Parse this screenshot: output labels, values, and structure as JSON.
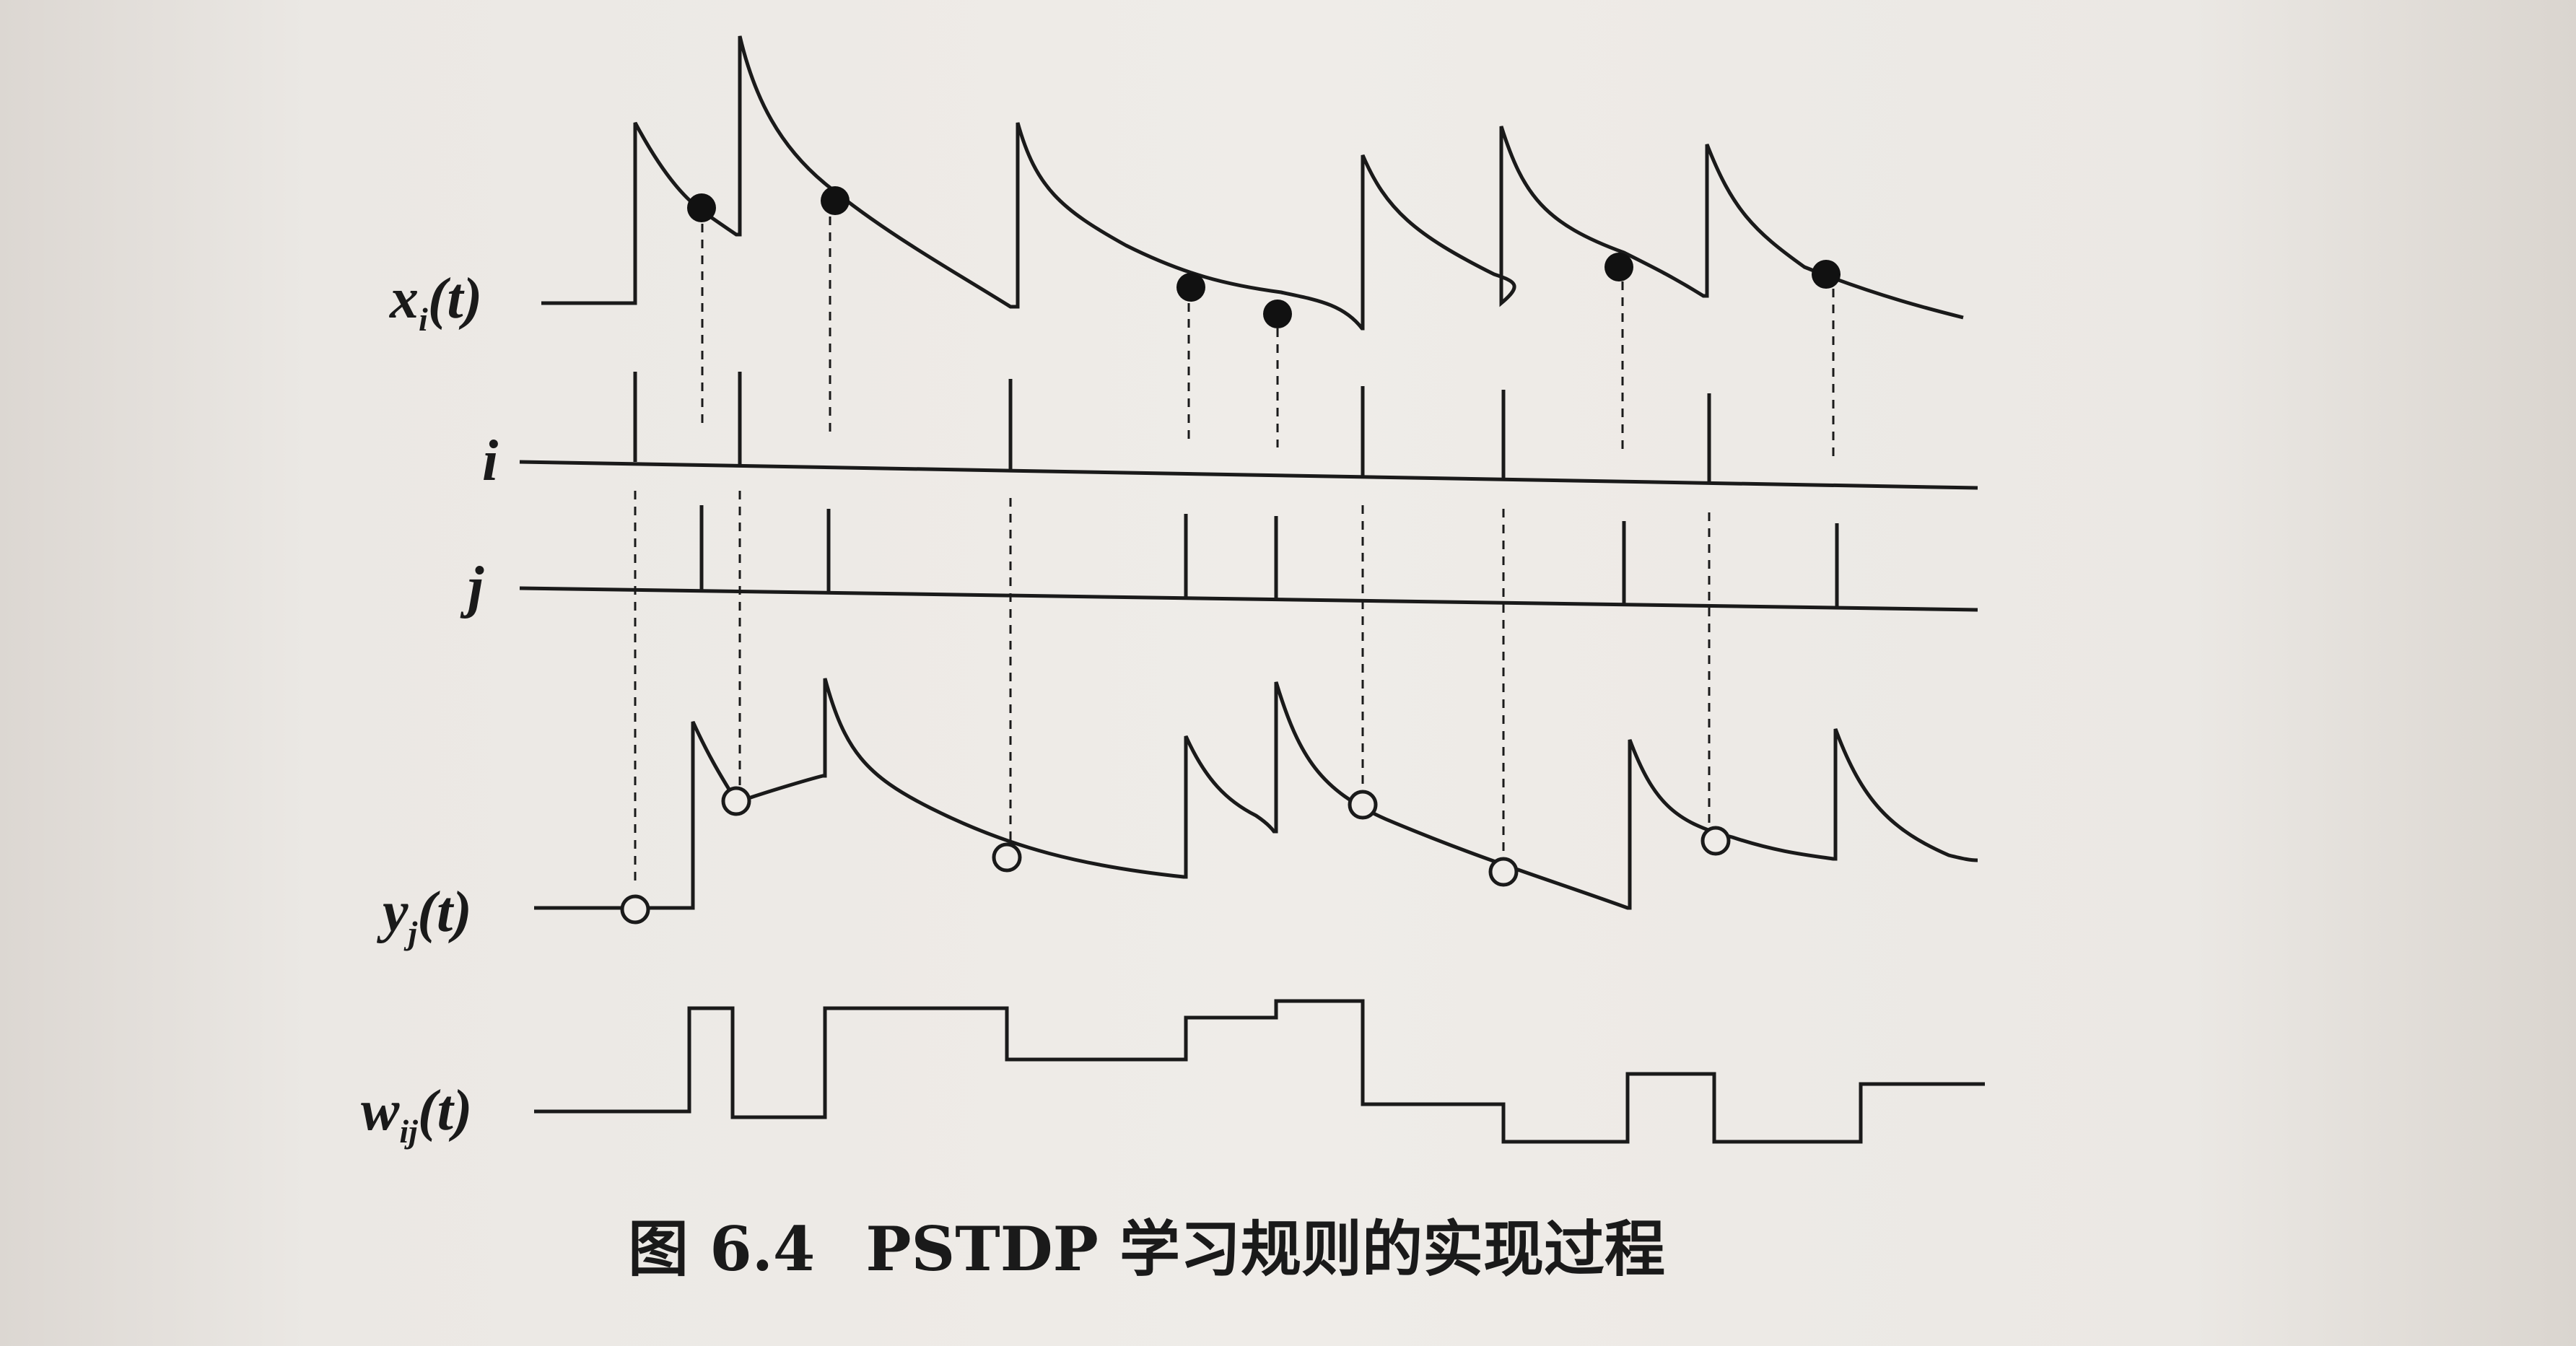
{
  "figure": {
    "labels": {
      "xi_main": "x",
      "xi_sub": "i",
      "xi_arg": "(t)",
      "i": "i",
      "j": "j",
      "yj_main": "y",
      "yj_sub": "j",
      "yj_arg": "(t)",
      "wij_main": "w",
      "wij_sub": "ij",
      "wij_arg": "(t)"
    },
    "caption": {
      "number": "图 6.4",
      "title": "PSTDP 学习规则的实现过程"
    }
  }
}
